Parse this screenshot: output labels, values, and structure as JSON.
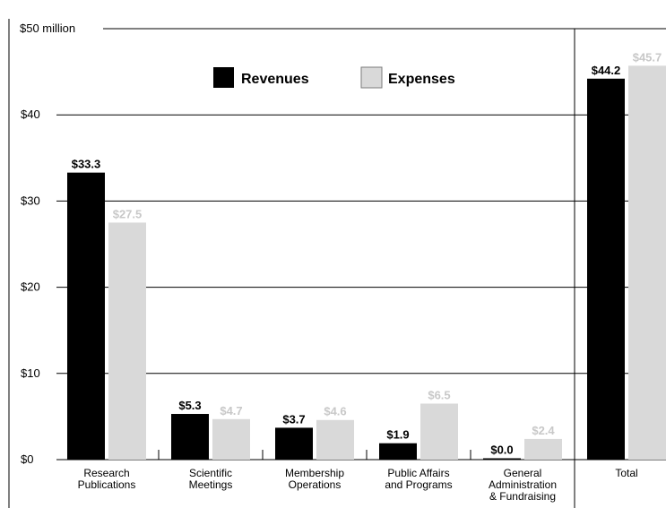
{
  "chart_data": {
    "type": "bar",
    "title": "",
    "xlabel": "",
    "ylabel": "",
    "y_unit_label": "$50 million",
    "ylim": [
      0,
      50
    ],
    "yticks": [
      {
        "value": 0,
        "label": "$0"
      },
      {
        "value": 10,
        "label": "$10"
      },
      {
        "value": 20,
        "label": "$20"
      },
      {
        "value": 30,
        "label": "$30"
      },
      {
        "value": 40,
        "label": "$40"
      },
      {
        "value": 50,
        "label": "$50 million"
      }
    ],
    "grid": true,
    "legend_position": "top-center",
    "categories": [
      [
        "Research",
        "Publications"
      ],
      [
        "Scientific",
        "Meetings"
      ],
      [
        "Membership",
        "Operations"
      ],
      [
        "Public Affairs",
        "and Programs"
      ],
      [
        "General",
        "Administration",
        "& Fundraising"
      ],
      [
        "Total"
      ]
    ],
    "series": [
      {
        "name": "Revenues",
        "color": "#000000",
        "label_color": "#000000",
        "values": [
          33.3,
          5.3,
          3.7,
          1.9,
          0.0,
          44.2
        ],
        "labels": [
          "$33.3",
          "$5.3",
          "$3.7",
          "$1.9",
          "$0.0",
          "$44.2"
        ]
      },
      {
        "name": "Expenses",
        "color": "#d9d9d9",
        "label_color": "#c8c8c8",
        "values": [
          27.5,
          4.7,
          4.6,
          6.5,
          2.4,
          45.7
        ],
        "labels": [
          "$27.5",
          "$4.7",
          "$4.6",
          "$6.5",
          "$2.4",
          "$45.7"
        ]
      }
    ]
  }
}
